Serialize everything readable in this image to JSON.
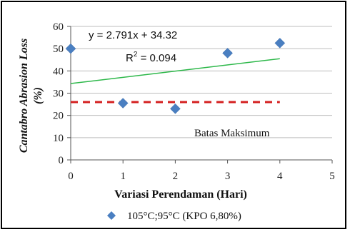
{
  "chart_data": {
    "type": "scatter",
    "xlabel": "Variasi Perendaman (Hari)",
    "ylabel_main": "Cantabro Abrasion Loss",
    "ylabel_unit": "(%)",
    "xlim": [
      0,
      5
    ],
    "ylim": [
      0,
      60
    ],
    "xticks": [
      "0",
      "1",
      "2",
      "3",
      "4",
      "5"
    ],
    "yticks": [
      "0",
      "10",
      "20",
      "30",
      "40",
      "50",
      "60"
    ],
    "grid": "horizontal",
    "legend_placement": "bottom",
    "series": [
      {
        "name": "105°C;95°C (KPO 6,80%)",
        "color": "#4a7fc1",
        "marker": "diamond",
        "x": [
          0,
          1,
          2,
          3,
          4
        ],
        "y": [
          50,
          25.5,
          23,
          48,
          52.5
        ]
      }
    ],
    "trendline": {
      "slope": 2.791,
      "intercept": 34.32,
      "color": "#2db84a",
      "x_range": [
        0,
        4
      ],
      "equation": "y = 2.791x + 34.32",
      "r2_label": "R",
      "r2_sup": "2",
      "r2_value": " = 0.094"
    },
    "threshold": {
      "value": 26,
      "color": "#d42020",
      "style": "dashed",
      "x_range": [
        0,
        4
      ],
      "label": "Batas Maksimum"
    }
  }
}
